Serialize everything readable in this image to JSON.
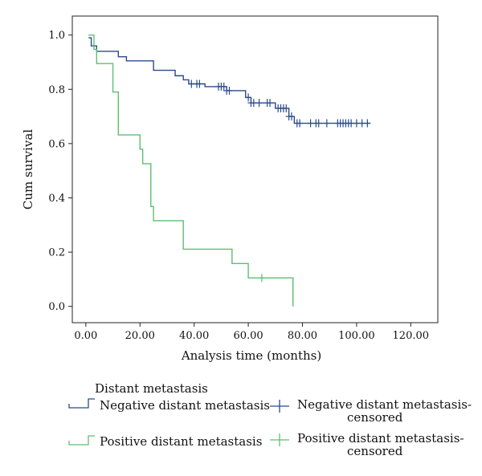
{
  "chart_data": {
    "type": "line",
    "xlabel": "Analysis time (months)",
    "ylabel": "Cum survival",
    "xlim": [
      -5,
      130
    ],
    "ylim": [
      -0.06,
      1.07
    ],
    "x_ticks": [
      0,
      20,
      40,
      60,
      80,
      100,
      120
    ],
    "x_tick_labels": [
      "0.00",
      "20.00",
      "40.00",
      "60.00",
      "80.00",
      "100.00",
      "120.00"
    ],
    "y_ticks": [
      0,
      0.2,
      0.4,
      0.6,
      0.8,
      1.0
    ],
    "y_tick_labels": [
      "0.0",
      "0.2",
      "0.4",
      "0.6",
      "0.8",
      "1.0"
    ],
    "grid": false,
    "legend_title": "Distant metastasis",
    "legend_placement": "bottom",
    "series": [
      {
        "name": "Negative distant metastasis",
        "censored_name": "Negative distant metastasis-censored",
        "color": "#2b4a8b",
        "steps": [
          [
            1,
            0.99
          ],
          [
            2,
            0.96
          ],
          [
            4,
            0.94
          ],
          [
            12,
            0.92
          ],
          [
            15,
            0.905
          ],
          [
            25,
            0.87
          ],
          [
            33,
            0.85
          ],
          [
            36,
            0.835
          ],
          [
            38,
            0.82
          ],
          [
            44,
            0.81
          ],
          [
            52,
            0.795
          ],
          [
            59,
            0.77
          ],
          [
            61,
            0.75
          ],
          [
            70,
            0.73
          ],
          [
            75,
            0.7
          ],
          [
            77,
            0.675
          ],
          [
            105,
            0.675
          ]
        ],
        "censored": [
          39,
          41,
          42,
          49,
          50,
          51,
          52,
          53,
          60,
          61,
          62,
          64,
          67,
          68,
          71,
          72,
          73,
          74,
          75,
          76,
          78,
          79,
          83,
          85,
          86,
          89,
          93,
          94,
          95,
          96,
          97,
          98,
          100,
          102,
          104
        ]
      },
      {
        "name": "Positive distant metastasis",
        "censored_name": "Positive distant metastasis-censored",
        "color": "#5cbf72",
        "steps": [
          [
            1,
            1.0
          ],
          [
            3,
            0.947
          ],
          [
            4,
            0.895
          ],
          [
            10,
            0.79
          ],
          [
            12,
            0.632
          ],
          [
            20,
            0.579
          ],
          [
            21,
            0.526
          ],
          [
            24,
            0.368
          ],
          [
            25,
            0.316
          ],
          [
            36,
            0.211
          ],
          [
            54,
            0.158
          ],
          [
            60,
            0.105
          ],
          [
            76.5,
            0.0
          ]
        ],
        "censored": [
          65
        ]
      }
    ]
  }
}
